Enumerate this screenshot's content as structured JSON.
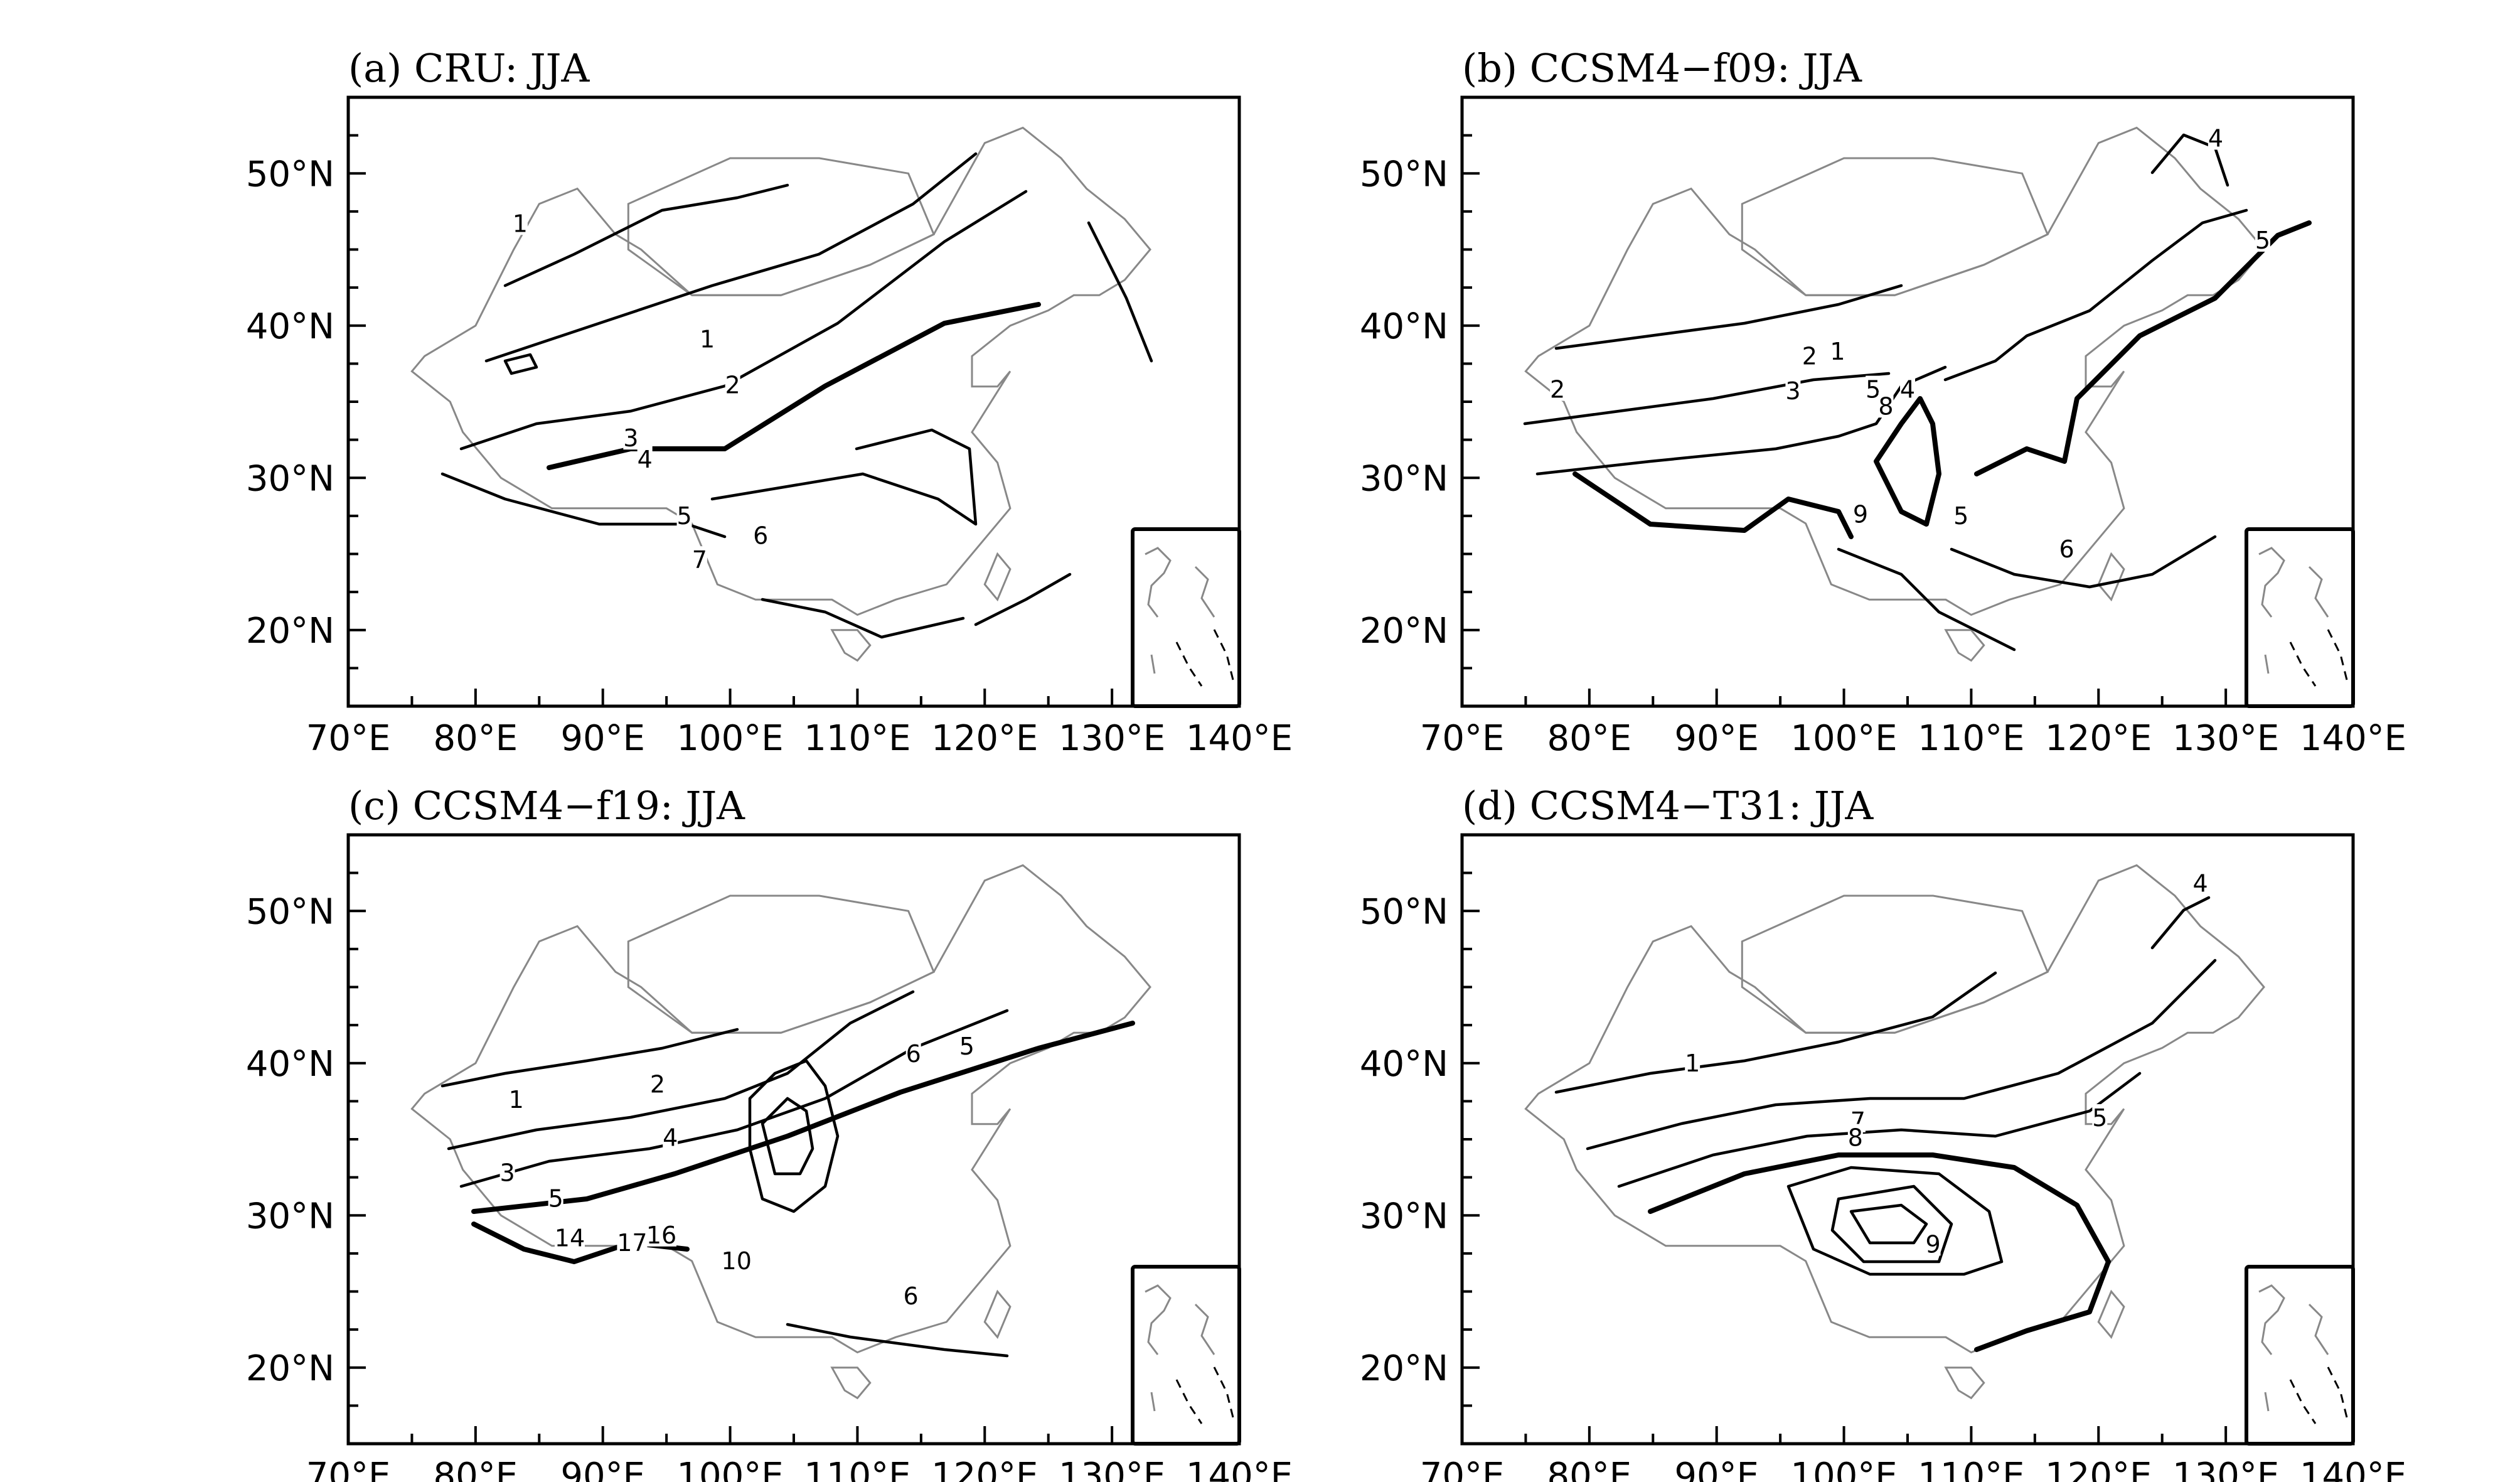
{
  "figure": {
    "panels": [
      {
        "id": "a",
        "title": "(a) CRU: JJA",
        "contour_labels": [
          {
            "text": "1",
            "lon": 83.5,
            "lat": 46.7
          },
          {
            "text": "1",
            "lon": 98.2,
            "lat": 39.1
          },
          {
            "text": "2",
            "lon": 100.2,
            "lat": 36.1
          },
          {
            "text": "3",
            "lon": 92.2,
            "lat": 32.6
          },
          {
            "text": "4",
            "lon": 93.3,
            "lat": 31.2
          },
          {
            "text": "5",
            "lon": 96.4,
            "lat": 27.5
          },
          {
            "text": "6",
            "lon": 102.4,
            "lat": 26.2
          },
          {
            "text": "7",
            "lon": 97.6,
            "lat": 24.6
          }
        ]
      },
      {
        "id": "b",
        "title": "(b) CCSM4−f09: JJA",
        "contour_labels": [
          {
            "text": "4",
            "lon": 129.2,
            "lat": 52.3
          },
          {
            "text": "5",
            "lon": 132.9,
            "lat": 45.6
          },
          {
            "text": "2",
            "lon": 97.3,
            "lat": 38.0
          },
          {
            "text": "1",
            "lon": 99.5,
            "lat": 38.3
          },
          {
            "text": "2",
            "lon": 77.5,
            "lat": 35.8
          },
          {
            "text": "3",
            "lon": 96.0,
            "lat": 35.7
          },
          {
            "text": "5",
            "lon": 102.3,
            "lat": 35.8
          },
          {
            "text": "4",
            "lon": 105.0,
            "lat": 35.8
          },
          {
            "text": "8",
            "lon": 103.3,
            "lat": 34.7
          },
          {
            "text": "9",
            "lon": 101.3,
            "lat": 27.6
          },
          {
            "text": "5",
            "lon": 109.2,
            "lat": 27.5
          },
          {
            "text": "6",
            "lon": 117.5,
            "lat": 25.3
          }
        ]
      },
      {
        "id": "c",
        "title": "(c) CCSM4−f19: JJA",
        "contour_labels": [
          {
            "text": "1",
            "lon": 83.2,
            "lat": 37.6
          },
          {
            "text": "2",
            "lon": 94.3,
            "lat": 38.6
          },
          {
            "text": "4",
            "lon": 95.3,
            "lat": 35.1
          },
          {
            "text": "3",
            "lon": 82.5,
            "lat": 32.8
          },
          {
            "text": "5",
            "lon": 86.3,
            "lat": 31.1
          },
          {
            "text": "6",
            "lon": 114.4,
            "lat": 40.6
          },
          {
            "text": "5",
            "lon": 118.6,
            "lat": 41.1
          },
          {
            "text": "14",
            "lon": 87.4,
            "lat": 28.5
          },
          {
            "text": "17",
            "lon": 92.3,
            "lat": 28.2
          },
          {
            "text": "16",
            "lon": 94.6,
            "lat": 28.7
          },
          {
            "text": "10",
            "lon": 100.5,
            "lat": 27.0
          },
          {
            "text": "6",
            "lon": 114.2,
            "lat": 24.7
          }
        ]
      },
      {
        "id": "d",
        "title": "(d) CCSM4−T31: JJA",
        "contour_labels": [
          {
            "text": "4",
            "lon": 128.0,
            "lat": 51.8
          },
          {
            "text": "1",
            "lon": 88.1,
            "lat": 40.0
          },
          {
            "text": "5",
            "lon": 120.1,
            "lat": 36.4
          },
          {
            "text": "7",
            "lon": 101.1,
            "lat": 36.2
          },
          {
            "text": "8",
            "lon": 100.9,
            "lat": 35.1
          },
          {
            "text": "9",
            "lon": 107.0,
            "lat": 28.1
          }
        ]
      }
    ],
    "x_axis": {
      "min": 70,
      "max": 140,
      "ticks": [
        70,
        80,
        90,
        100,
        110,
        120,
        130,
        140
      ],
      "tick_labels": [
        "70°E",
        "80°E",
        "90°E",
        "100°E",
        "110°E",
        "120°E",
        "130°E",
        "140°E"
      ]
    },
    "y_axis": {
      "min": 15,
      "max": 55,
      "ticks": [
        20,
        30,
        40,
        50
      ],
      "tick_labels": [
        "20°N",
        "30°N",
        "40°N",
        "50°N"
      ]
    }
  },
  "chart_data": {
    "type": "contour",
    "variable": "JJA",
    "panels": [
      "(a) CRU: JJA",
      "(b) CCSM4−f09: JJA",
      "(c) CCSM4−f19: JJA",
      "(d) CCSM4−T31: JJA"
    ],
    "xlim": [
      70,
      140
    ],
    "ylim": [
      15,
      55
    ],
    "x_ticks": [
      70,
      80,
      90,
      100,
      110,
      120,
      130,
      140
    ],
    "y_ticks": [
      20,
      30,
      40,
      50
    ],
    "contour_levels_labeled": {
      "a": [
        1,
        2,
        3,
        4,
        5,
        6,
        7
      ],
      "b": [
        1,
        2,
        3,
        4,
        5,
        6,
        8,
        9
      ],
      "c": [
        1,
        2,
        3,
        4,
        5,
        6,
        10,
        14,
        16,
        17
      ],
      "d": [
        1,
        4,
        5,
        7,
        8,
        9
      ]
    },
    "grid": false,
    "legend": "none"
  }
}
